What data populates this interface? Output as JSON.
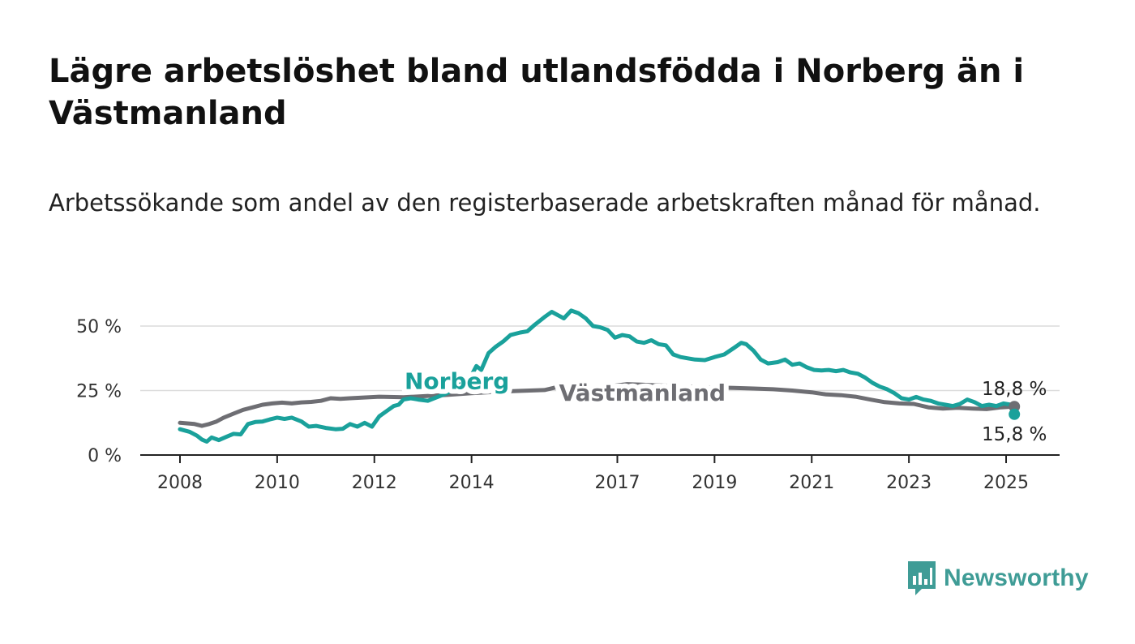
{
  "header": {
    "title": "Lägre arbetslöshet bland utlandsfödda i Norberg än i Västmanland",
    "subtitle": "Arbetssökande som andel av den registerbaserade arbetskraften månad för månad."
  },
  "brand": {
    "name": "Newsworthy",
    "icon": "bar-chart-speech-bubble-icon",
    "color": "#3f9c96"
  },
  "chart_data": {
    "type": "line",
    "title": "",
    "xlabel": "",
    "ylabel": "",
    "xlim": [
      2008,
      2025.25
    ],
    "ylim": [
      0,
      50
    ],
    "yticks": [
      0,
      25,
      50
    ],
    "ytick_labels": [
      "0 %",
      "25 %",
      "50 %"
    ],
    "xticks": [
      2008,
      2010,
      2012,
      2014,
      2017,
      2019,
      2021,
      2023,
      2025
    ],
    "xtick_labels": [
      "2008",
      "2010",
      "2012",
      "2014",
      "2017",
      "2019",
      "2021",
      "2023",
      "2025"
    ],
    "grid": "horizontal",
    "series": [
      {
        "name": "Västmanland",
        "color": "#6e6e73",
        "end_label": "18,8 %",
        "x": [
          2008.0,
          2008.3,
          2008.45,
          2008.6,
          2008.75,
          2008.9,
          2009.1,
          2009.3,
          2009.5,
          2009.7,
          2009.9,
          2010.1,
          2010.3,
          2010.5,
          2010.7,
          2010.9,
          2011.1,
          2011.3,
          2011.5,
          2011.7,
          2011.9,
          2012.1,
          2012.3,
          2012.6,
          2013.0,
          2013.5,
          2014.0,
          2014.5,
          2014.9,
          2015.2,
          2015.5,
          2015.8,
          2016.0,
          2016.3,
          2016.6,
          2016.9,
          2017.2,
          2017.5,
          2017.8,
          2018.2,
          2018.6,
          2019.0,
          2019.4,
          2019.8,
          2020.2,
          2020.6,
          2021.0,
          2021.3,
          2021.6,
          2021.9,
          2022.2,
          2022.5,
          2022.8,
          2023.1,
          2023.4,
          2023.7,
          2024.0,
          2024.3,
          2024.6,
          2024.9,
          2025.17
        ],
        "y": [
          12.5,
          12.0,
          11.3,
          12.0,
          13.0,
          14.5,
          16.0,
          17.5,
          18.5,
          19.5,
          20.0,
          20.3,
          20.0,
          20.4,
          20.6,
          21.0,
          22.0,
          21.8,
          22.0,
          22.2,
          22.4,
          22.6,
          22.5,
          22.4,
          22.8,
          23.3,
          24.0,
          24.5,
          24.8,
          25.0,
          25.2,
          26.5,
          27.0,
          26.2,
          26.5,
          26.8,
          27.5,
          27.3,
          27.0,
          26.8,
          26.5,
          26.2,
          26.0,
          25.8,
          25.5,
          25.0,
          24.3,
          23.5,
          23.2,
          22.6,
          21.5,
          20.5,
          20.0,
          19.8,
          18.5,
          18.0,
          18.3,
          18.0,
          17.8,
          18.5,
          18.8
        ]
      },
      {
        "name": "Norberg",
        "color": "#1aa19b",
        "end_label": "15,8 %",
        "x": [
          2008.0,
          2008.2,
          2008.35,
          2008.45,
          2008.55,
          2008.65,
          2008.8,
          2008.95,
          2009.1,
          2009.25,
          2009.4,
          2009.55,
          2009.7,
          2009.85,
          2010.0,
          2010.15,
          2010.3,
          2010.5,
          2010.65,
          2010.8,
          2011.0,
          2011.2,
          2011.35,
          2011.5,
          2011.65,
          2011.8,
          2011.95,
          2012.1,
          2012.25,
          2012.4,
          2012.5,
          2012.6,
          2012.75,
          2012.9,
          2013.1,
          2013.3,
          2013.5,
          2013.7,
          2013.9,
          2014.0,
          2014.1,
          2014.2,
          2014.35,
          2014.5,
          2014.65,
          2014.8,
          2015.0,
          2015.15,
          2015.3,
          2015.5,
          2015.65,
          2015.8,
          2015.9,
          2016.05,
          2016.2,
          2016.35,
          2016.5,
          2016.65,
          2016.8,
          2016.95,
          2017.1,
          2017.25,
          2017.4,
          2017.55,
          2017.7,
          2017.85,
          2018.0,
          2018.15,
          2018.3,
          2018.45,
          2018.6,
          2018.8,
          2019.0,
          2019.2,
          2019.4,
          2019.55,
          2019.65,
          2019.8,
          2019.95,
          2020.1,
          2020.3,
          2020.45,
          2020.6,
          2020.75,
          2020.9,
          2021.05,
          2021.2,
          2021.35,
          2021.5,
          2021.65,
          2021.8,
          2021.95,
          2022.1,
          2022.25,
          2022.4,
          2022.55,
          2022.7,
          2022.85,
          2023.0,
          2023.15,
          2023.3,
          2023.45,
          2023.6,
          2023.75,
          2023.9,
          2024.05,
          2024.2,
          2024.35,
          2024.5,
          2024.65,
          2024.8,
          2024.95,
          2025.1,
          2025.17
        ],
        "y": [
          10.0,
          9.0,
          7.5,
          6.0,
          5.2,
          6.8,
          5.8,
          7.0,
          8.2,
          8.0,
          12.0,
          12.8,
          13.0,
          13.8,
          14.5,
          14.0,
          14.5,
          13.0,
          11.0,
          11.3,
          10.5,
          10.0,
          10.2,
          12.0,
          11.0,
          12.5,
          11.0,
          15.0,
          17.0,
          19.0,
          19.5,
          21.5,
          22.0,
          21.5,
          21.0,
          22.5,
          24.0,
          26.5,
          29.0,
          31.0,
          34.5,
          33.0,
          39.5,
          42.0,
          44.0,
          46.5,
          47.5,
          48.0,
          50.5,
          53.5,
          55.5,
          54.0,
          53.0,
          56.0,
          55.0,
          53.0,
          50.0,
          49.5,
          48.5,
          45.5,
          46.5,
          46.0,
          44.0,
          43.5,
          44.5,
          43.0,
          42.5,
          39.0,
          38.0,
          37.5,
          37.0,
          36.8,
          38.0,
          39.0,
          41.5,
          43.5,
          43.0,
          40.5,
          37.0,
          35.5,
          36.0,
          37.0,
          35.0,
          35.5,
          34.0,
          33.0,
          32.8,
          33.0,
          32.5,
          33.0,
          32.0,
          31.5,
          30.0,
          28.0,
          26.5,
          25.5,
          24.0,
          22.0,
          21.5,
          22.5,
          21.5,
          21.0,
          20.0,
          19.5,
          19.0,
          19.8,
          21.5,
          20.5,
          19.0,
          19.5,
          19.0,
          20.0,
          19.5,
          15.8
        ]
      }
    ]
  }
}
